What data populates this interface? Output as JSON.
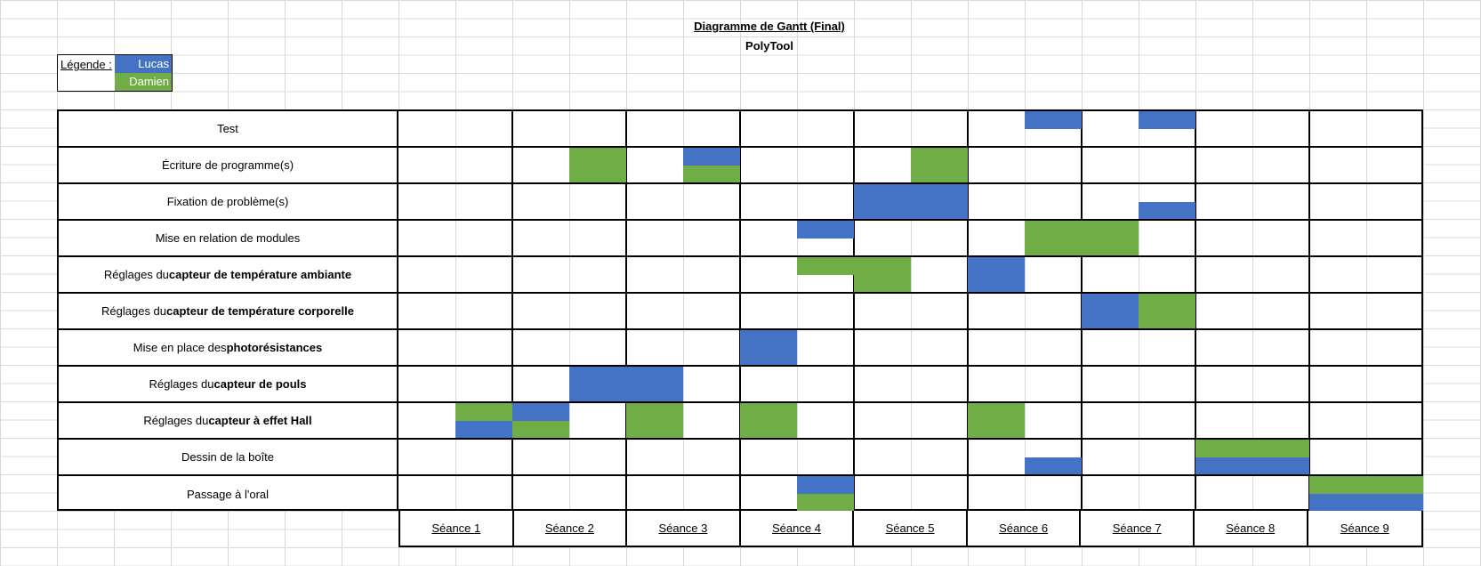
{
  "title": "Diagramme de Gantt (Final)",
  "subtitle": "PolyTool",
  "legend": {
    "label": "Légende :",
    "items": [
      {
        "name": "Lucas",
        "color": "#4472c4"
      },
      {
        "name": "Damien",
        "color": "#70ad47"
      }
    ]
  },
  "tasks": [
    {
      "pre": "Test",
      "bold": "",
      "post": ""
    },
    {
      "pre": "Écriture de programme(s)",
      "bold": "",
      "post": ""
    },
    {
      "pre": "Fixation de problème(s)",
      "bold": "",
      "post": ""
    },
    {
      "pre": "Mise en relation de modules",
      "bold": "",
      "post": ""
    },
    {
      "pre": "Réglages du ",
      "bold": "capteur de température ambiante",
      "post": ""
    },
    {
      "pre": "Réglages du ",
      "bold": "capteur de température corporelle",
      "post": ""
    },
    {
      "pre": "Mise en place des ",
      "bold": "photorésistances",
      "post": ""
    },
    {
      "pre": "Réglages du ",
      "bold": "capteur de pouls",
      "post": ""
    },
    {
      "pre": "Réglages du ",
      "bold": "capteur à effet Hall",
      "post": ""
    },
    {
      "pre": "Dessin de la boîte",
      "bold": "",
      "post": ""
    },
    {
      "pre": "Passage à l'oral",
      "bold": "",
      "post": ""
    }
  ],
  "seances": [
    "Séance 1",
    "Séance 2",
    "Séance 3",
    "Séance 4",
    "Séance 5",
    "Séance 6",
    "Séance 7",
    "Séance 8",
    "Séance 9"
  ],
  "chart_data": {
    "type": "gantt",
    "title": "Diagramme de Gantt (Final)",
    "subtitle": "PolyTool",
    "categories": [
      "Test",
      "Écriture de programme(s)",
      "Fixation de problème(s)",
      "Mise en relation de modules",
      "Réglages du capteur de température ambiante",
      "Réglages du capteur de température corporelle",
      "Mise en place des photorésistances",
      "Réglages du capteur de pouls",
      "Réglages du capteur à effet Hall",
      "Dessin de la boîte",
      "Passage à l'oral"
    ],
    "x": [
      "Séance 1",
      "Séance 2",
      "Séance 3",
      "Séance 4",
      "Séance 5",
      "Séance 6",
      "Séance 7",
      "Séance 8",
      "Séance 9"
    ],
    "series": [
      {
        "name": "Lucas",
        "color": "#4472c4"
      },
      {
        "name": "Damien",
        "color": "#70ad47"
      }
    ],
    "bars": [
      {
        "task": 0,
        "start": 6.5,
        "end": 7,
        "who": "Lucas",
        "part": "top"
      },
      {
        "task": 0,
        "start": 7.5,
        "end": 8,
        "who": "Lucas",
        "part": "top"
      },
      {
        "task": 1,
        "start": 2.5,
        "end": 3,
        "who": "Damien",
        "part": "full"
      },
      {
        "task": 1,
        "start": 3.5,
        "end": 4,
        "who": "Lucas",
        "part": "top"
      },
      {
        "task": 1,
        "start": 3.5,
        "end": 4,
        "who": "Damien",
        "part": "bottom"
      },
      {
        "task": 1,
        "start": 5.5,
        "end": 6,
        "who": "Damien",
        "part": "full"
      },
      {
        "task": 2,
        "start": 5,
        "end": 6,
        "who": "Lucas",
        "part": "full"
      },
      {
        "task": 2,
        "start": 7.5,
        "end": 8,
        "who": "Lucas",
        "part": "bottom"
      },
      {
        "task": 3,
        "start": 4.5,
        "end": 5,
        "who": "Lucas",
        "part": "top"
      },
      {
        "task": 3,
        "start": 6.5,
        "end": 7,
        "who": "Damien",
        "part": "full"
      },
      {
        "task": 3,
        "start": 7,
        "end": 7.5,
        "who": "Damien",
        "part": "full"
      },
      {
        "task": 4,
        "start": 4.5,
        "end": 5,
        "who": "Damien",
        "part": "top"
      },
      {
        "task": 4,
        "start": 5,
        "end": 5.5,
        "who": "Damien",
        "part": "full"
      },
      {
        "task": 4,
        "start": 6,
        "end": 6.5,
        "who": "Lucas",
        "part": "full"
      },
      {
        "task": 5,
        "start": 7,
        "end": 7.5,
        "who": "Lucas",
        "part": "full"
      },
      {
        "task": 5,
        "start": 7.5,
        "end": 8,
        "who": "Damien",
        "part": "full"
      },
      {
        "task": 6,
        "start": 4,
        "end": 4.5,
        "who": "Lucas",
        "part": "full"
      },
      {
        "task": 7,
        "start": 2.5,
        "end": 3,
        "who": "Lucas",
        "part": "full"
      },
      {
        "task": 7,
        "start": 3,
        "end": 3.5,
        "who": "Lucas",
        "part": "full"
      },
      {
        "task": 8,
        "start": 1.5,
        "end": 2,
        "who": "Damien",
        "part": "top"
      },
      {
        "task": 8,
        "start": 1.5,
        "end": 2,
        "who": "Lucas",
        "part": "bottom"
      },
      {
        "task": 8,
        "start": 2,
        "end": 2.5,
        "who": "Lucas",
        "part": "top"
      },
      {
        "task": 8,
        "start": 2,
        "end": 2.5,
        "who": "Damien",
        "part": "bottom"
      },
      {
        "task": 8,
        "start": 3,
        "end": 3.5,
        "who": "Damien",
        "part": "full"
      },
      {
        "task": 8,
        "start": 4,
        "end": 4.5,
        "who": "Damien",
        "part": "full"
      },
      {
        "task": 8,
        "start": 6,
        "end": 6.5,
        "who": "Damien",
        "part": "full"
      },
      {
        "task": 9,
        "start": 6.5,
        "end": 7,
        "who": "Lucas",
        "part": "bottom"
      },
      {
        "task": 9,
        "start": 8,
        "end": 9,
        "who": "Damien",
        "part": "top"
      },
      {
        "task": 9,
        "start": 8,
        "end": 9,
        "who": "Lucas",
        "part": "bottom"
      },
      {
        "task": 10,
        "start": 4.5,
        "end": 5,
        "who": "Lucas",
        "part": "top"
      },
      {
        "task": 10,
        "start": 4.5,
        "end": 5,
        "who": "Damien",
        "part": "bottom"
      },
      {
        "task": 10,
        "start": 9,
        "end": 10,
        "who": "Damien",
        "part": "top"
      },
      {
        "task": 10,
        "start": 9,
        "end": 10,
        "who": "Lucas",
        "part": "bottom"
      }
    ]
  }
}
